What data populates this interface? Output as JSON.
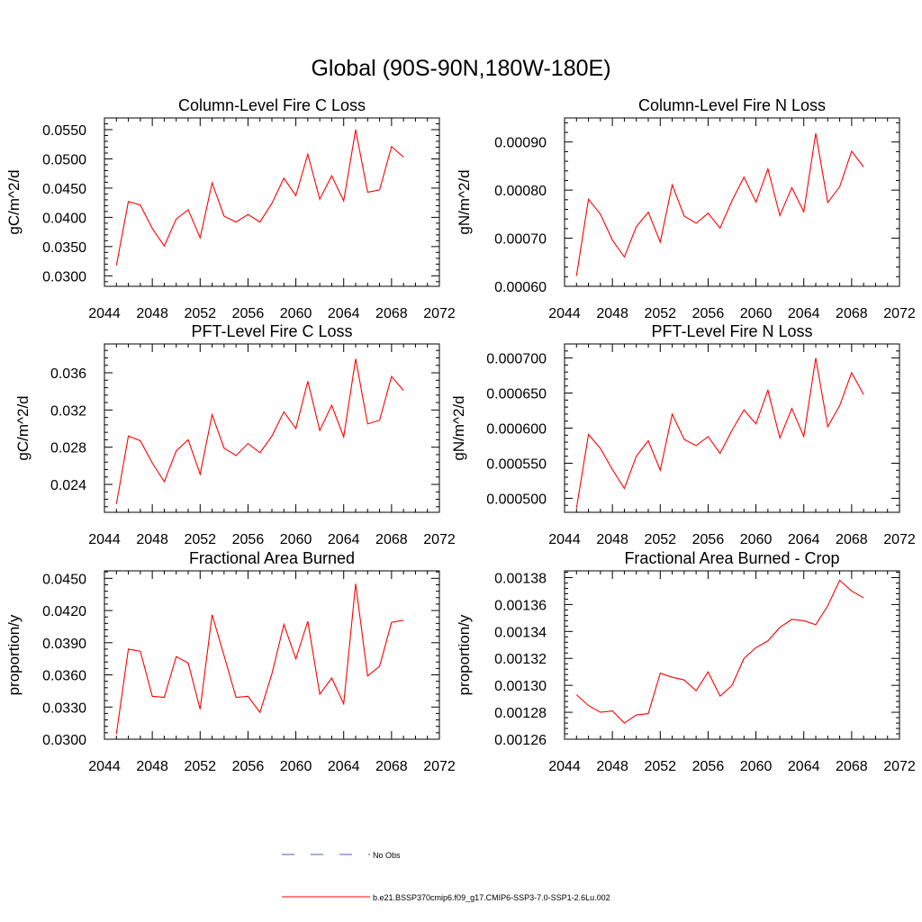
{
  "figure": {
    "title": "Global (90S-90N,180W-180E)",
    "legend": {
      "placement": "bottom-center",
      "entries": [
        {
          "label": "No Obs",
          "color": "#4a5cc8",
          "style": "dashed"
        },
        {
          "label": "b.e21.BSSP370cmip6.f09_g17.CMIP6-SSP3-7.0-SSP1-2.6Lu.002",
          "color": "#ff0000",
          "style": "solid"
        }
      ]
    }
  },
  "chart_data": [
    {
      "type": "line",
      "title": "Column-Level Fire C Loss",
      "xlabel": "",
      "ylabel": "gC/m^2/d",
      "xlim": [
        2044,
        2072
      ],
      "ylim": [
        0.0282,
        0.057
      ],
      "x_ticks": [
        "2044",
        "2048",
        "2052",
        "2056",
        "2060",
        "2064",
        "2068",
        "2072"
      ],
      "y_ticks": [
        "0.0300",
        "0.0350",
        "0.0400",
        "0.0450",
        "0.0500",
        "0.0550"
      ],
      "y_tick_values": [
        0.03,
        0.035,
        0.04,
        0.045,
        0.05,
        0.055
      ],
      "grid": false,
      "series": [
        {
          "color": "#ff0000",
          "x": [
            2045,
            2046,
            2047,
            2048,
            2049,
            2050,
            2051,
            2052,
            2053,
            2054,
            2055,
            2056,
            2057,
            2058,
            2059,
            2060,
            2061,
            2062,
            2063,
            2064,
            2065,
            2066,
            2067,
            2068,
            2069
          ],
          "y": [
            0.0318,
            0.0427,
            0.0421,
            0.0381,
            0.0351,
            0.0397,
            0.0413,
            0.0365,
            0.0459,
            0.0402,
            0.0392,
            0.0405,
            0.0392,
            0.0424,
            0.0467,
            0.0437,
            0.0508,
            0.0431,
            0.0471,
            0.0428,
            0.055,
            0.0443,
            0.0447,
            0.0521,
            0.0503
          ]
        }
      ]
    },
    {
      "type": "line",
      "title": "Column-Level Fire N Loss",
      "xlabel": "",
      "ylabel": "gN/m^2/d",
      "xlim": [
        2044,
        2072
      ],
      "ylim": [
        0.0006,
        0.00095
      ],
      "x_ticks": [
        "2044",
        "2048",
        "2052",
        "2056",
        "2060",
        "2064",
        "2068",
        "2072"
      ],
      "y_ticks": [
        "0.00060",
        "0.00070",
        "0.00080",
        "0.00090"
      ],
      "y_tick_values": [
        0.0006,
        0.0007,
        0.0008,
        0.0009
      ],
      "grid": false,
      "series": [
        {
          "color": "#ff0000",
          "x": [
            2045,
            2046,
            2047,
            2048,
            2049,
            2050,
            2051,
            2052,
            2053,
            2054,
            2055,
            2056,
            2057,
            2058,
            2059,
            2060,
            2061,
            2062,
            2063,
            2064,
            2065,
            2066,
            2067,
            2068,
            2069
          ],
          "y": [
            0.000622,
            0.000781,
            0.00075,
            0.000696,
            0.000661,
            0.000724,
            0.000754,
            0.000692,
            0.000811,
            0.000746,
            0.000731,
            0.000752,
            0.000721,
            0.000778,
            0.000827,
            0.000775,
            0.000844,
            0.000747,
            0.000805,
            0.000755,
            0.000918,
            0.000774,
            0.000807,
            0.000881,
            0.000848
          ]
        }
      ]
    },
    {
      "type": "line",
      "title": "PFT-Level Fire C Loss",
      "xlabel": "",
      "ylabel": "gC/m^2/d",
      "xlim": [
        2044,
        2072
      ],
      "ylim": [
        0.021,
        0.0391
      ],
      "x_ticks": [
        "2044",
        "2048",
        "2052",
        "2056",
        "2060",
        "2064",
        "2068",
        "2072"
      ],
      "y_ticks": [
        "0.024",
        "0.028",
        "0.032",
        "0.036"
      ],
      "y_tick_values": [
        0.024,
        0.028,
        0.032,
        0.036
      ],
      "grid": false,
      "series": [
        {
          "color": "#ff0000",
          "x": [
            2045,
            2046,
            2047,
            2048,
            2049,
            2050,
            2051,
            2052,
            2053,
            2054,
            2055,
            2056,
            2057,
            2058,
            2059,
            2060,
            2061,
            2062,
            2063,
            2064,
            2065,
            2066,
            2067,
            2068,
            2069
          ],
          "y": [
            0.0219,
            0.0292,
            0.0287,
            0.0263,
            0.0243,
            0.0276,
            0.0288,
            0.0251,
            0.0315,
            0.0279,
            0.0271,
            0.0284,
            0.0274,
            0.0292,
            0.0318,
            0.03,
            0.0351,
            0.0298,
            0.0325,
            0.0291,
            0.0375,
            0.0305,
            0.0309,
            0.0356,
            0.0341
          ]
        }
      ]
    },
    {
      "type": "line",
      "title": "PFT-Level Fire N Loss",
      "xlabel": "",
      "ylabel": "gN/m^2/d",
      "xlim": [
        2044,
        2072
      ],
      "ylim": [
        0.00048,
        0.00072
      ],
      "x_ticks": [
        "2044",
        "2048",
        "2052",
        "2056",
        "2060",
        "2064",
        "2068",
        "2072"
      ],
      "y_ticks": [
        "0.000500",
        "0.000550",
        "0.000600",
        "0.000650",
        "0.000700"
      ],
      "y_tick_values": [
        0.0005,
        0.00055,
        0.0006,
        0.00065,
        0.0007
      ],
      "grid": false,
      "series": [
        {
          "color": "#ff0000",
          "x": [
            2045,
            2046,
            2047,
            2048,
            2049,
            2050,
            2051,
            2052,
            2053,
            2054,
            2055,
            2056,
            2057,
            2058,
            2059,
            2060,
            2061,
            2062,
            2063,
            2064,
            2065,
            2066,
            2067,
            2068,
            2069
          ],
          "y": [
            0.000486,
            0.000591,
            0.000571,
            0.000541,
            0.000514,
            0.00056,
            0.000582,
            0.00054,
            0.00062,
            0.000584,
            0.000575,
            0.000588,
            0.000564,
            0.000597,
            0.000626,
            0.000606,
            0.000654,
            0.000586,
            0.000628,
            0.000588,
            0.0007,
            0.000602,
            0.000632,
            0.000679,
            0.000648
          ]
        }
      ]
    },
    {
      "type": "line",
      "title": "Fractional Area Burned",
      "xlabel": "",
      "ylabel": "proportion/y",
      "xlim": [
        2044,
        2072
      ],
      "ylim": [
        0.03,
        0.0457
      ],
      "x_ticks": [
        "2044",
        "2048",
        "2052",
        "2056",
        "2060",
        "2064",
        "2068",
        "2072"
      ],
      "y_ticks": [
        "0.0300",
        "0.0330",
        "0.0360",
        "0.0390",
        "0.0420",
        "0.0450"
      ],
      "y_tick_values": [
        0.03,
        0.033,
        0.036,
        0.039,
        0.042,
        0.045
      ],
      "grid": false,
      "series": [
        {
          "color": "#ff0000",
          "x": [
            2045,
            2046,
            2047,
            2048,
            2049,
            2050,
            2051,
            2052,
            2053,
            2054,
            2055,
            2056,
            2057,
            2058,
            2059,
            2060,
            2061,
            2062,
            2063,
            2064,
            2065,
            2066,
            2067,
            2068,
            2069
          ],
          "y": [
            0.0305,
            0.0384,
            0.0382,
            0.034,
            0.0339,
            0.0377,
            0.0371,
            0.0328,
            0.0416,
            0.0378,
            0.0339,
            0.034,
            0.0325,
            0.0361,
            0.0407,
            0.0375,
            0.041,
            0.0342,
            0.0357,
            0.0333,
            0.0445,
            0.0359,
            0.0368,
            0.0409,
            0.0411
          ]
        }
      ]
    },
    {
      "type": "line",
      "title": "Fractional Area Burned - Crop",
      "xlabel": "",
      "ylabel": "proportion/y",
      "xlim": [
        2044,
        2072
      ],
      "ylim": [
        0.00126,
        0.001385
      ],
      "x_ticks": [
        "2044",
        "2048",
        "2052",
        "2056",
        "2060",
        "2064",
        "2068",
        "2072"
      ],
      "y_ticks": [
        "0.00126",
        "0.00128",
        "0.00130",
        "0.00132",
        "0.00134",
        "0.00136",
        "0.00138"
      ],
      "y_tick_values": [
        0.00126,
        0.00128,
        0.0013,
        0.00132,
        0.00134,
        0.00136,
        0.00138
      ],
      "grid": false,
      "series": [
        {
          "color": "#ff0000",
          "x": [
            2045,
            2046,
            2047,
            2048,
            2049,
            2050,
            2051,
            2052,
            2053,
            2054,
            2055,
            2056,
            2057,
            2058,
            2059,
            2060,
            2061,
            2062,
            2063,
            2064,
            2065,
            2066,
            2067,
            2068,
            2069
          ],
          "y": [
            0.001293,
            0.001285,
            0.00128,
            0.001281,
            0.001272,
            0.001278,
            0.001279,
            0.001309,
            0.001306,
            0.001304,
            0.001296,
            0.00131,
            0.001292,
            0.0013,
            0.00132,
            0.001328,
            0.001333,
            0.001343,
            0.001349,
            0.001348,
            0.001345,
            0.001359,
            0.001378,
            0.00137,
            0.001365
          ]
        }
      ]
    }
  ]
}
